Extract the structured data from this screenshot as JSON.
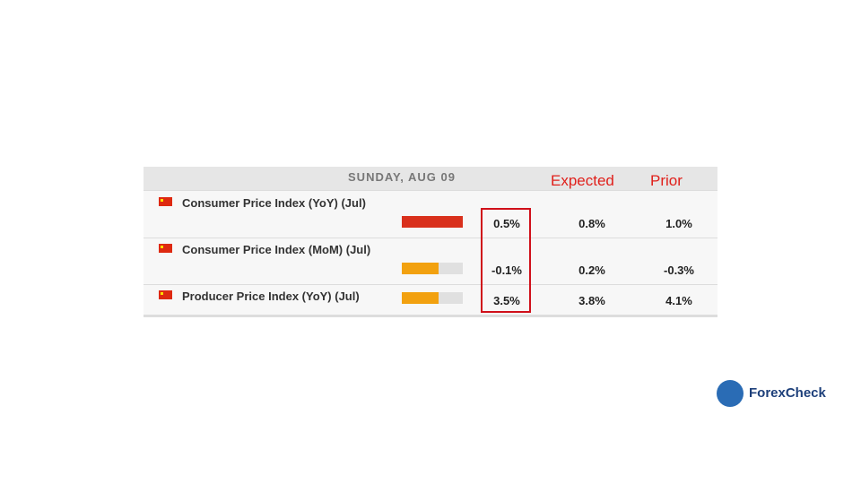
{
  "header": {
    "date": "SUNDAY, AUG 09",
    "expected": "Expected",
    "prior": "Prior"
  },
  "rows": [
    {
      "name": "Consumer Price Index (YoY) (Jul)",
      "actual": "0.5%",
      "expected": "0.8%",
      "prior": "1.0%"
    },
    {
      "name": "Consumer Price Index (MoM) (Jul)",
      "actual": "-0.1%",
      "expected": "0.2%",
      "prior": "-0.3%"
    },
    {
      "name": "Producer Price Index (YoY) (Jul)",
      "actual": "3.5%",
      "expected": "3.8%",
      "prior": "4.1%"
    }
  ],
  "logo": "ForexCheck"
}
